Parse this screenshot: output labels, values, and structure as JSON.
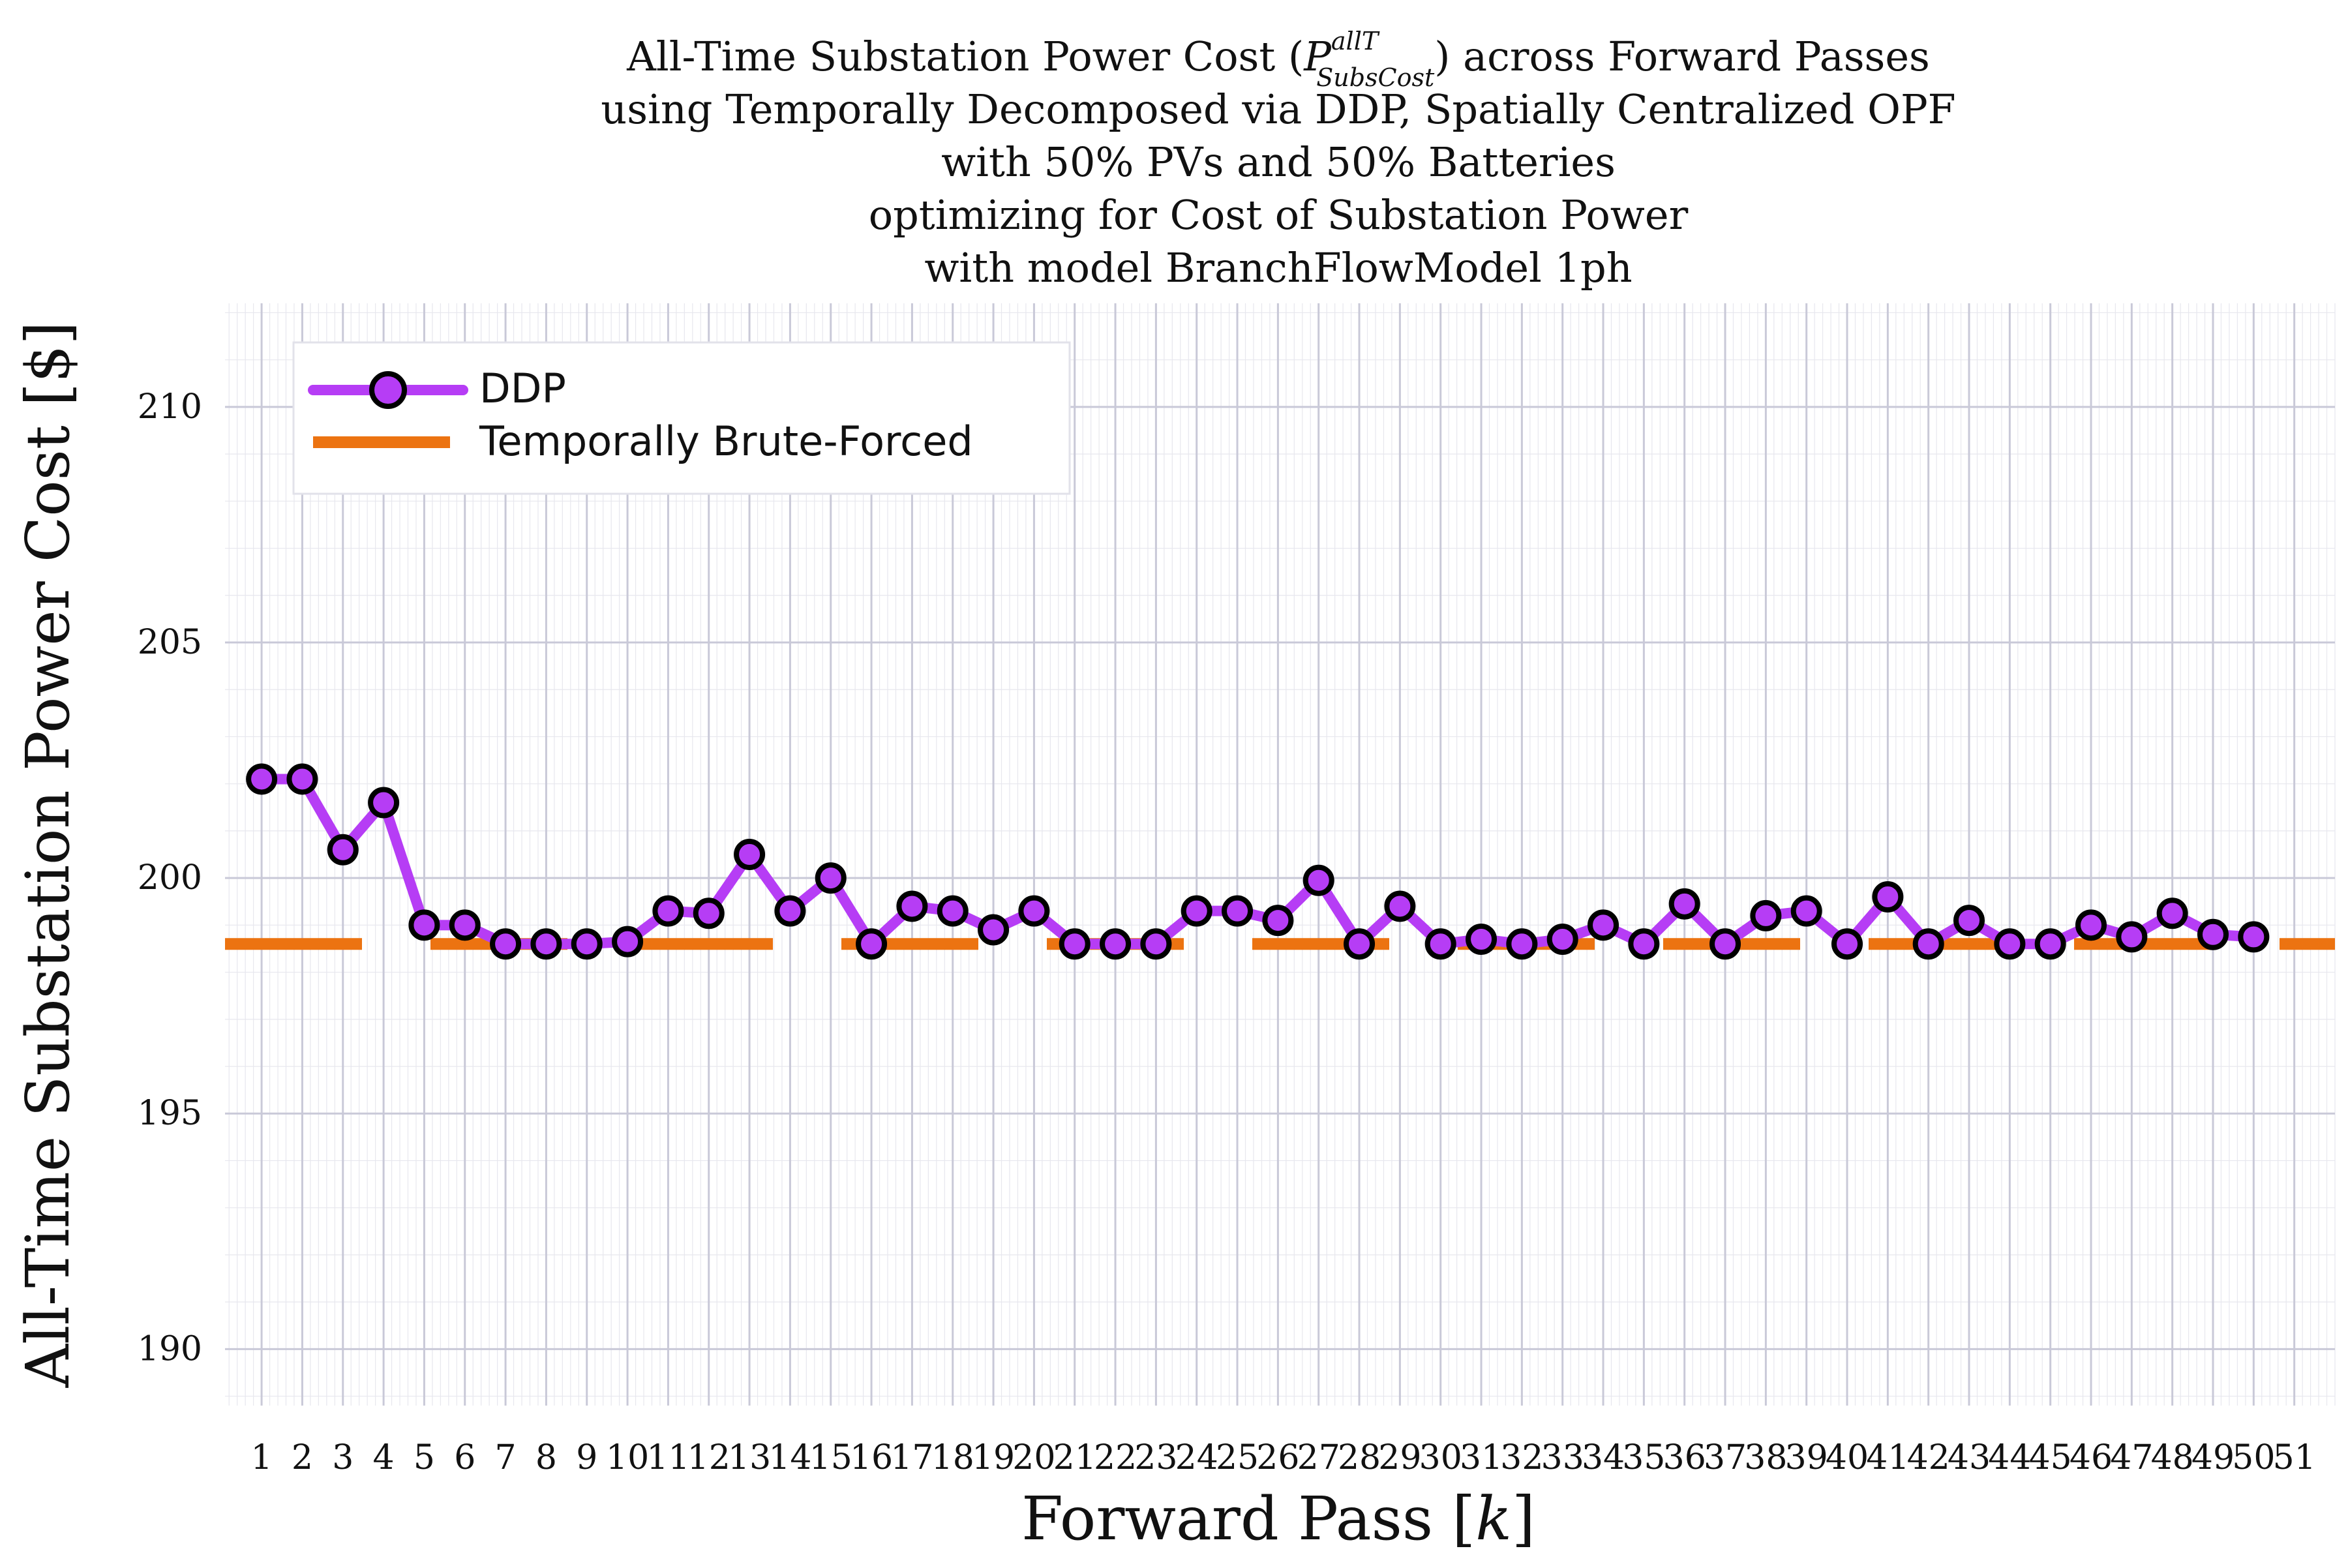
{
  "chart_data": {
    "type": "line",
    "title_lines": [
      "All-Time Substation Power Cost (",
      "using Temporally Decomposed via DDP, Spatially Centralized OPF",
      "with 50% PVs and 50% Batteries",
      "optimizing for Cost of Substation Power",
      "with model BranchFlowModel 1ph"
    ],
    "title_math": {
      "symbol": "P",
      "superscript": "allT",
      "subscript": "SubsCost",
      "suffix": ") across Forward Passes"
    },
    "xlabel": "Forward Pass [",
    "xlabel_var": "k",
    "xlabel_end": "]",
    "ylabel": "All-Time Substation Power Cost [$]",
    "xlim": [
      0.1,
      52.0
    ],
    "ylim": [
      188.8,
      212.2
    ],
    "yticks": [
      190,
      195,
      200,
      205,
      210
    ],
    "xticks": [
      1,
      2,
      3,
      4,
      5,
      6,
      7,
      8,
      9,
      10,
      11,
      12,
      13,
      14,
      15,
      16,
      17,
      18,
      19,
      20,
      21,
      22,
      23,
      24,
      25,
      26,
      27,
      28,
      29,
      30,
      31,
      32,
      33,
      34,
      35,
      36,
      37,
      38,
      39,
      40,
      41,
      42,
      43,
      44,
      45,
      46,
      47,
      48,
      49,
      50,
      51
    ],
    "grid": "major and minor",
    "legend_position": "top-left",
    "series": [
      {
        "name": "DDP",
        "color": "#b63df5",
        "marker": "circle",
        "x": [
          1,
          2,
          3,
          4,
          5,
          6,
          7,
          8,
          9,
          10,
          11,
          12,
          13,
          14,
          15,
          16,
          17,
          18,
          19,
          20,
          21,
          22,
          23,
          24,
          25,
          26,
          27,
          28,
          29,
          30,
          31,
          32,
          33,
          34,
          35,
          36,
          37,
          38,
          39,
          40,
          41,
          42,
          43,
          44,
          45,
          46,
          47,
          48,
          49,
          50
        ],
        "values": [
          202.1,
          202.1,
          200.6,
          201.6,
          199.0,
          199.0,
          198.6,
          198.6,
          198.6,
          198.65,
          199.3,
          199.25,
          200.5,
          199.3,
          200.0,
          198.6,
          199.4,
          199.3,
          198.9,
          199.3,
          198.6,
          198.6,
          198.6,
          199.3,
          199.3,
          199.1,
          199.95,
          198.6,
          199.4,
          198.6,
          198.7,
          198.6,
          198.7,
          199.0,
          198.6,
          199.45,
          198.6,
          199.2,
          199.3,
          198.6,
          199.6,
          198.6,
          199.1,
          198.6,
          198.6,
          199.0,
          198.75,
          199.25,
          198.8,
          198.75
        ]
      },
      {
        "name": "Temporally Brute-Forced",
        "color": "#ec7311",
        "style": "dashed",
        "constant": 198.6
      }
    ]
  }
}
